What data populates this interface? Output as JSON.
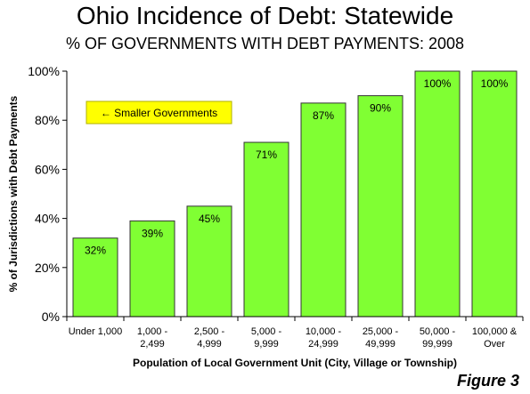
{
  "title": "Ohio Incidence of Debt: Statewide",
  "subtitle": "% OF GOVERNMENTS WITH DEBT PAYMENTS: 2008",
  "figure_label": "Figure 3",
  "colors": {
    "bar_fill": "#80ff33",
    "bar_stroke": "#333333",
    "annotation_fill": "#ffff00",
    "annotation_stroke": "#b0b000"
  },
  "chart_data": {
    "type": "bar",
    "title": "Ohio Incidence of Debt: Statewide",
    "subtitle": "% OF GOVERNMENTS WITH DEBT PAYMENTS: 2008",
    "xlabel": "Population of Local Government Unit (City, Village or Township)",
    "ylabel": "% of Jurisdictions with Debt Payments",
    "categories": [
      [
        "Under 1,000"
      ],
      [
        "1,000 -",
        "2,499"
      ],
      [
        "2,500 -",
        "4,999"
      ],
      [
        "5,000 -",
        "9,999"
      ],
      [
        "10,000 -",
        "24,999"
      ],
      [
        "25,000 -",
        "49,999"
      ],
      [
        "50,000 -",
        "99,999"
      ],
      [
        "100,000 &",
        "Over"
      ]
    ],
    "values": [
      32,
      39,
      45,
      71,
      87,
      90,
      100,
      100
    ],
    "data_labels": [
      "32%",
      "39%",
      "45%",
      "71%",
      "87%",
      "90%",
      "100%",
      "100%"
    ],
    "ylim": [
      0,
      100
    ],
    "yticks": [
      0,
      20,
      40,
      60,
      80,
      100
    ],
    "ytick_labels": [
      "0%",
      "20%",
      "40%",
      "60%",
      "80%",
      "100%"
    ],
    "grid": false,
    "legend": false,
    "annotation": "← Smaller Governments"
  }
}
